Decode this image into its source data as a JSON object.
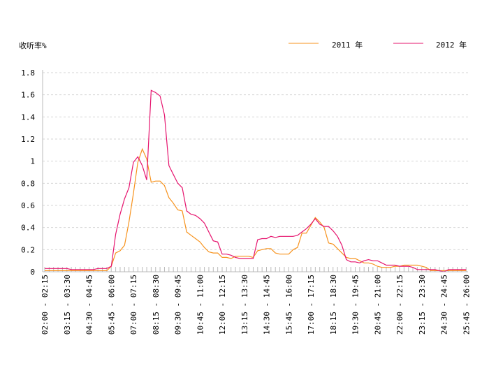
{
  "chart_data": {
    "type": "line",
    "ylabel": "收听率%",
    "ylim": [
      0,
      1.8
    ],
    "yticks": [
      "0",
      "0.2",
      "0.4",
      "0.6",
      "0.8",
      "1",
      "1.2",
      "1.4",
      "1.6",
      "1.8"
    ],
    "grid": "horizontal-dashed",
    "legend_position": "top-right",
    "x_count": 96,
    "xtick_labels": [
      {
        "i": 0,
        "label": "02:00 - 02:15"
      },
      {
        "i": 5,
        "label": "03:15 - 03:30"
      },
      {
        "i": 10,
        "label": "04:30 - 04:45"
      },
      {
        "i": 15,
        "label": "05:45 - 06:00"
      },
      {
        "i": 20,
        "label": "07:00 - 07:15"
      },
      {
        "i": 25,
        "label": "08:15 - 08:30"
      },
      {
        "i": 30,
        "label": "09:30 - 09:45"
      },
      {
        "i": 35,
        "label": "10:45 - 11:00"
      },
      {
        "i": 40,
        "label": "12:00 - 12:15"
      },
      {
        "i": 45,
        "label": "13:15 - 13:30"
      },
      {
        "i": 50,
        "label": "14:30 - 14:45"
      },
      {
        "i": 55,
        "label": "15:45 - 16:00"
      },
      {
        "i": 60,
        "label": "17:00 - 17:15"
      },
      {
        "i": 65,
        "label": "18:15 - 18:30"
      },
      {
        "i": 70,
        "label": "19:30 - 19:45"
      },
      {
        "i": 75,
        "label": "20:45 - 21:00"
      },
      {
        "i": 80,
        "label": "22:00 - 22:15"
      },
      {
        "i": 85,
        "label": "23:15 - 23:30"
      },
      {
        "i": 90,
        "label": "24:30 - 24:45"
      },
      {
        "i": 95,
        "label": "25:45 - 26:00"
      }
    ],
    "series": [
      {
        "name": "2011 年",
        "color": "#f7931e",
        "values": [
          0.01,
          0.01,
          0.01,
          0.01,
          0.01,
          0.01,
          0.01,
          0.01,
          0.01,
          0.01,
          0.01,
          0.01,
          0.01,
          0.01,
          0.01,
          0.05,
          0.17,
          0.19,
          0.24,
          0.45,
          0.71,
          0.99,
          1.11,
          1.02,
          0.81,
          0.82,
          0.82,
          0.78,
          0.67,
          0.62,
          0.56,
          0.55,
          0.36,
          0.33,
          0.3,
          0.27,
          0.22,
          0.18,
          0.17,
          0.17,
          0.13,
          0.13,
          0.12,
          0.14,
          0.14,
          0.14,
          0.14,
          0.13,
          0.19,
          0.2,
          0.21,
          0.21,
          0.17,
          0.16,
          0.16,
          0.16,
          0.2,
          0.22,
          0.35,
          0.35,
          0.42,
          0.49,
          0.45,
          0.4,
          0.26,
          0.25,
          0.21,
          0.17,
          0.13,
          0.12,
          0.12,
          0.1,
          0.08,
          0.08,
          0.07,
          0.05,
          0.04,
          0.04,
          0.04,
          0.05,
          0.05,
          0.06,
          0.06,
          0.06,
          0.06,
          0.05,
          0.04,
          0.01,
          0.01,
          0.01,
          0.01,
          0.01,
          0.01,
          0.01,
          0.01,
          0.01
        ]
      },
      {
        "name": "2012 年",
        "color": "#e6146e",
        "values": [
          0.03,
          0.03,
          0.03,
          0.03,
          0.03,
          0.03,
          0.02,
          0.02,
          0.02,
          0.02,
          0.02,
          0.02,
          0.03,
          0.03,
          0.03,
          0.05,
          0.34,
          0.52,
          0.66,
          0.76,
          0.99,
          1.04,
          0.96,
          0.83,
          1.64,
          1.62,
          1.59,
          1.42,
          0.96,
          0.88,
          0.8,
          0.76,
          0.55,
          0.52,
          0.51,
          0.48,
          0.44,
          0.36,
          0.28,
          0.27,
          0.16,
          0.16,
          0.15,
          0.13,
          0.12,
          0.12,
          0.12,
          0.12,
          0.29,
          0.3,
          0.3,
          0.32,
          0.31,
          0.32,
          0.32,
          0.32,
          0.32,
          0.33,
          0.36,
          0.39,
          0.43,
          0.48,
          0.43,
          0.41,
          0.41,
          0.37,
          0.32,
          0.24,
          0.11,
          0.09,
          0.09,
          0.08,
          0.1,
          0.11,
          0.1,
          0.1,
          0.08,
          0.06,
          0.06,
          0.06,
          0.05,
          0.05,
          0.05,
          0.04,
          0.02,
          0.02,
          0.02,
          0.02,
          0.02,
          0.01,
          0.0,
          0.02,
          0.02,
          0.02,
          0.02,
          0.02
        ]
      }
    ]
  }
}
